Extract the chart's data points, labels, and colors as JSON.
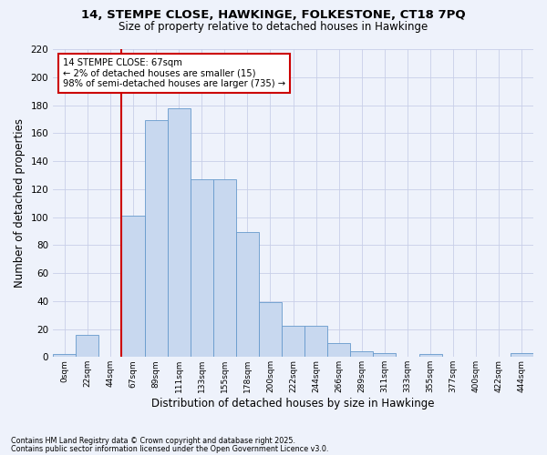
{
  "title_line1": "14, STEMPE CLOSE, HAWKINGE, FOLKESTONE, CT18 7PQ",
  "title_line2": "Size of property relative to detached houses in Hawkinge",
  "xlabel": "Distribution of detached houses by size in Hawkinge",
  "ylabel": "Number of detached properties",
  "footnote1": "Contains HM Land Registry data © Crown copyright and database right 2025.",
  "footnote2": "Contains public sector information licensed under the Open Government Licence v3.0.",
  "annotation_title": "14 STEMPE CLOSE: 67sqm",
  "annotation_line2": "← 2% of detached houses are smaller (15)",
  "annotation_line3": "98% of semi-detached houses are larger (735) →",
  "property_sqm": 67,
  "bar_categories": [
    "0sqm",
    "22sqm",
    "44sqm",
    "67sqm",
    "89sqm",
    "111sqm",
    "133sqm",
    "155sqm",
    "178sqm",
    "200sqm",
    "222sqm",
    "244sqm",
    "266sqm",
    "289sqm",
    "311sqm",
    "333sqm",
    "355sqm",
    "377sqm",
    "400sqm",
    "422sqm",
    "444sqm"
  ],
  "bar_values": [
    2,
    16,
    0,
    101,
    169,
    178,
    127,
    127,
    89,
    39,
    22,
    22,
    10,
    4,
    3,
    0,
    2,
    0,
    0,
    0,
    3
  ],
  "bar_color": "#c8d8ef",
  "bar_edge_color": "#6699cc",
  "vline_color": "#cc0000",
  "vline_x_idx": 3,
  "annotation_box_color": "#cc0000",
  "background_color": "#eef2fb",
  "grid_color": "#c8cfe8",
  "ylim": [
    0,
    220
  ],
  "yticks": [
    0,
    20,
    40,
    60,
    80,
    100,
    120,
    140,
    160,
    180,
    200,
    220
  ]
}
